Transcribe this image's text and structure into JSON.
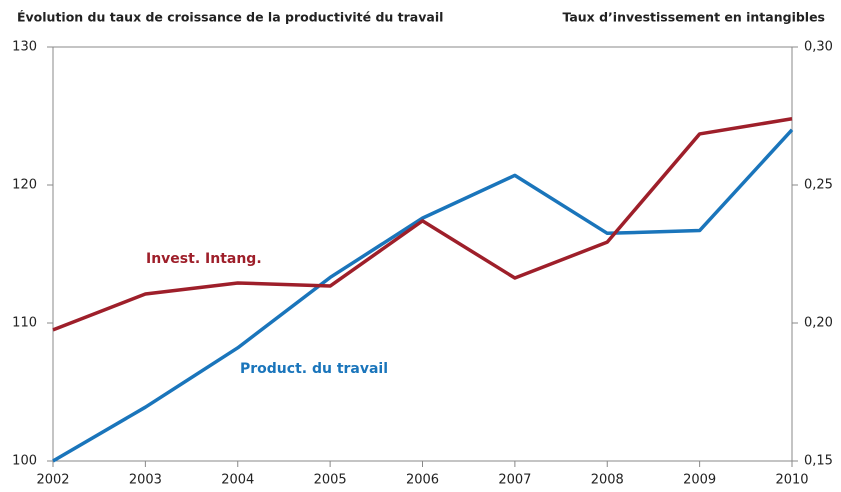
{
  "chart_data": {
    "type": "line",
    "ylabel": "Évolution du taux de croissance de la productivité du travail",
    "y2label": "Taux d’investissement en intangibles",
    "x": [
      2002,
      2003,
      2004,
      2005,
      2006,
      2007,
      2008,
      2009,
      2010
    ],
    "xlim": [
      2002,
      2010
    ],
    "xticks": [
      2002,
      2003,
      2004,
      2005,
      2006,
      2007,
      2008,
      2009,
      2010
    ],
    "ylim": [
      100,
      130
    ],
    "yticks": [
      100,
      110,
      120,
      130
    ],
    "y2lim": [
      0.15,
      0.3
    ],
    "y2ticks": [
      {
        "value": 0.15,
        "label": "0,15"
      },
      {
        "value": 0.2,
        "label": "0,20"
      },
      {
        "value": 0.25,
        "label": "0,25"
      },
      {
        "value": 0.3,
        "label": "0,30"
      }
    ],
    "grid": false,
    "series": [
      {
        "name": "Product. du travail",
        "color": "#1a75bb",
        "values": [
          100,
          103.9,
          108.2,
          113.3,
          117.6,
          120.7,
          116.5,
          116.7,
          124.0
        ]
      },
      {
        "name": "Invest. Intang.",
        "color": "#9e1f2a",
        "axis": "y2",
        "values": [
          0.1975,
          0.2105,
          0.2145,
          0.2134,
          0.237,
          0.2163,
          0.2293,
          0.2685,
          0.274
        ]
      }
    ]
  }
}
